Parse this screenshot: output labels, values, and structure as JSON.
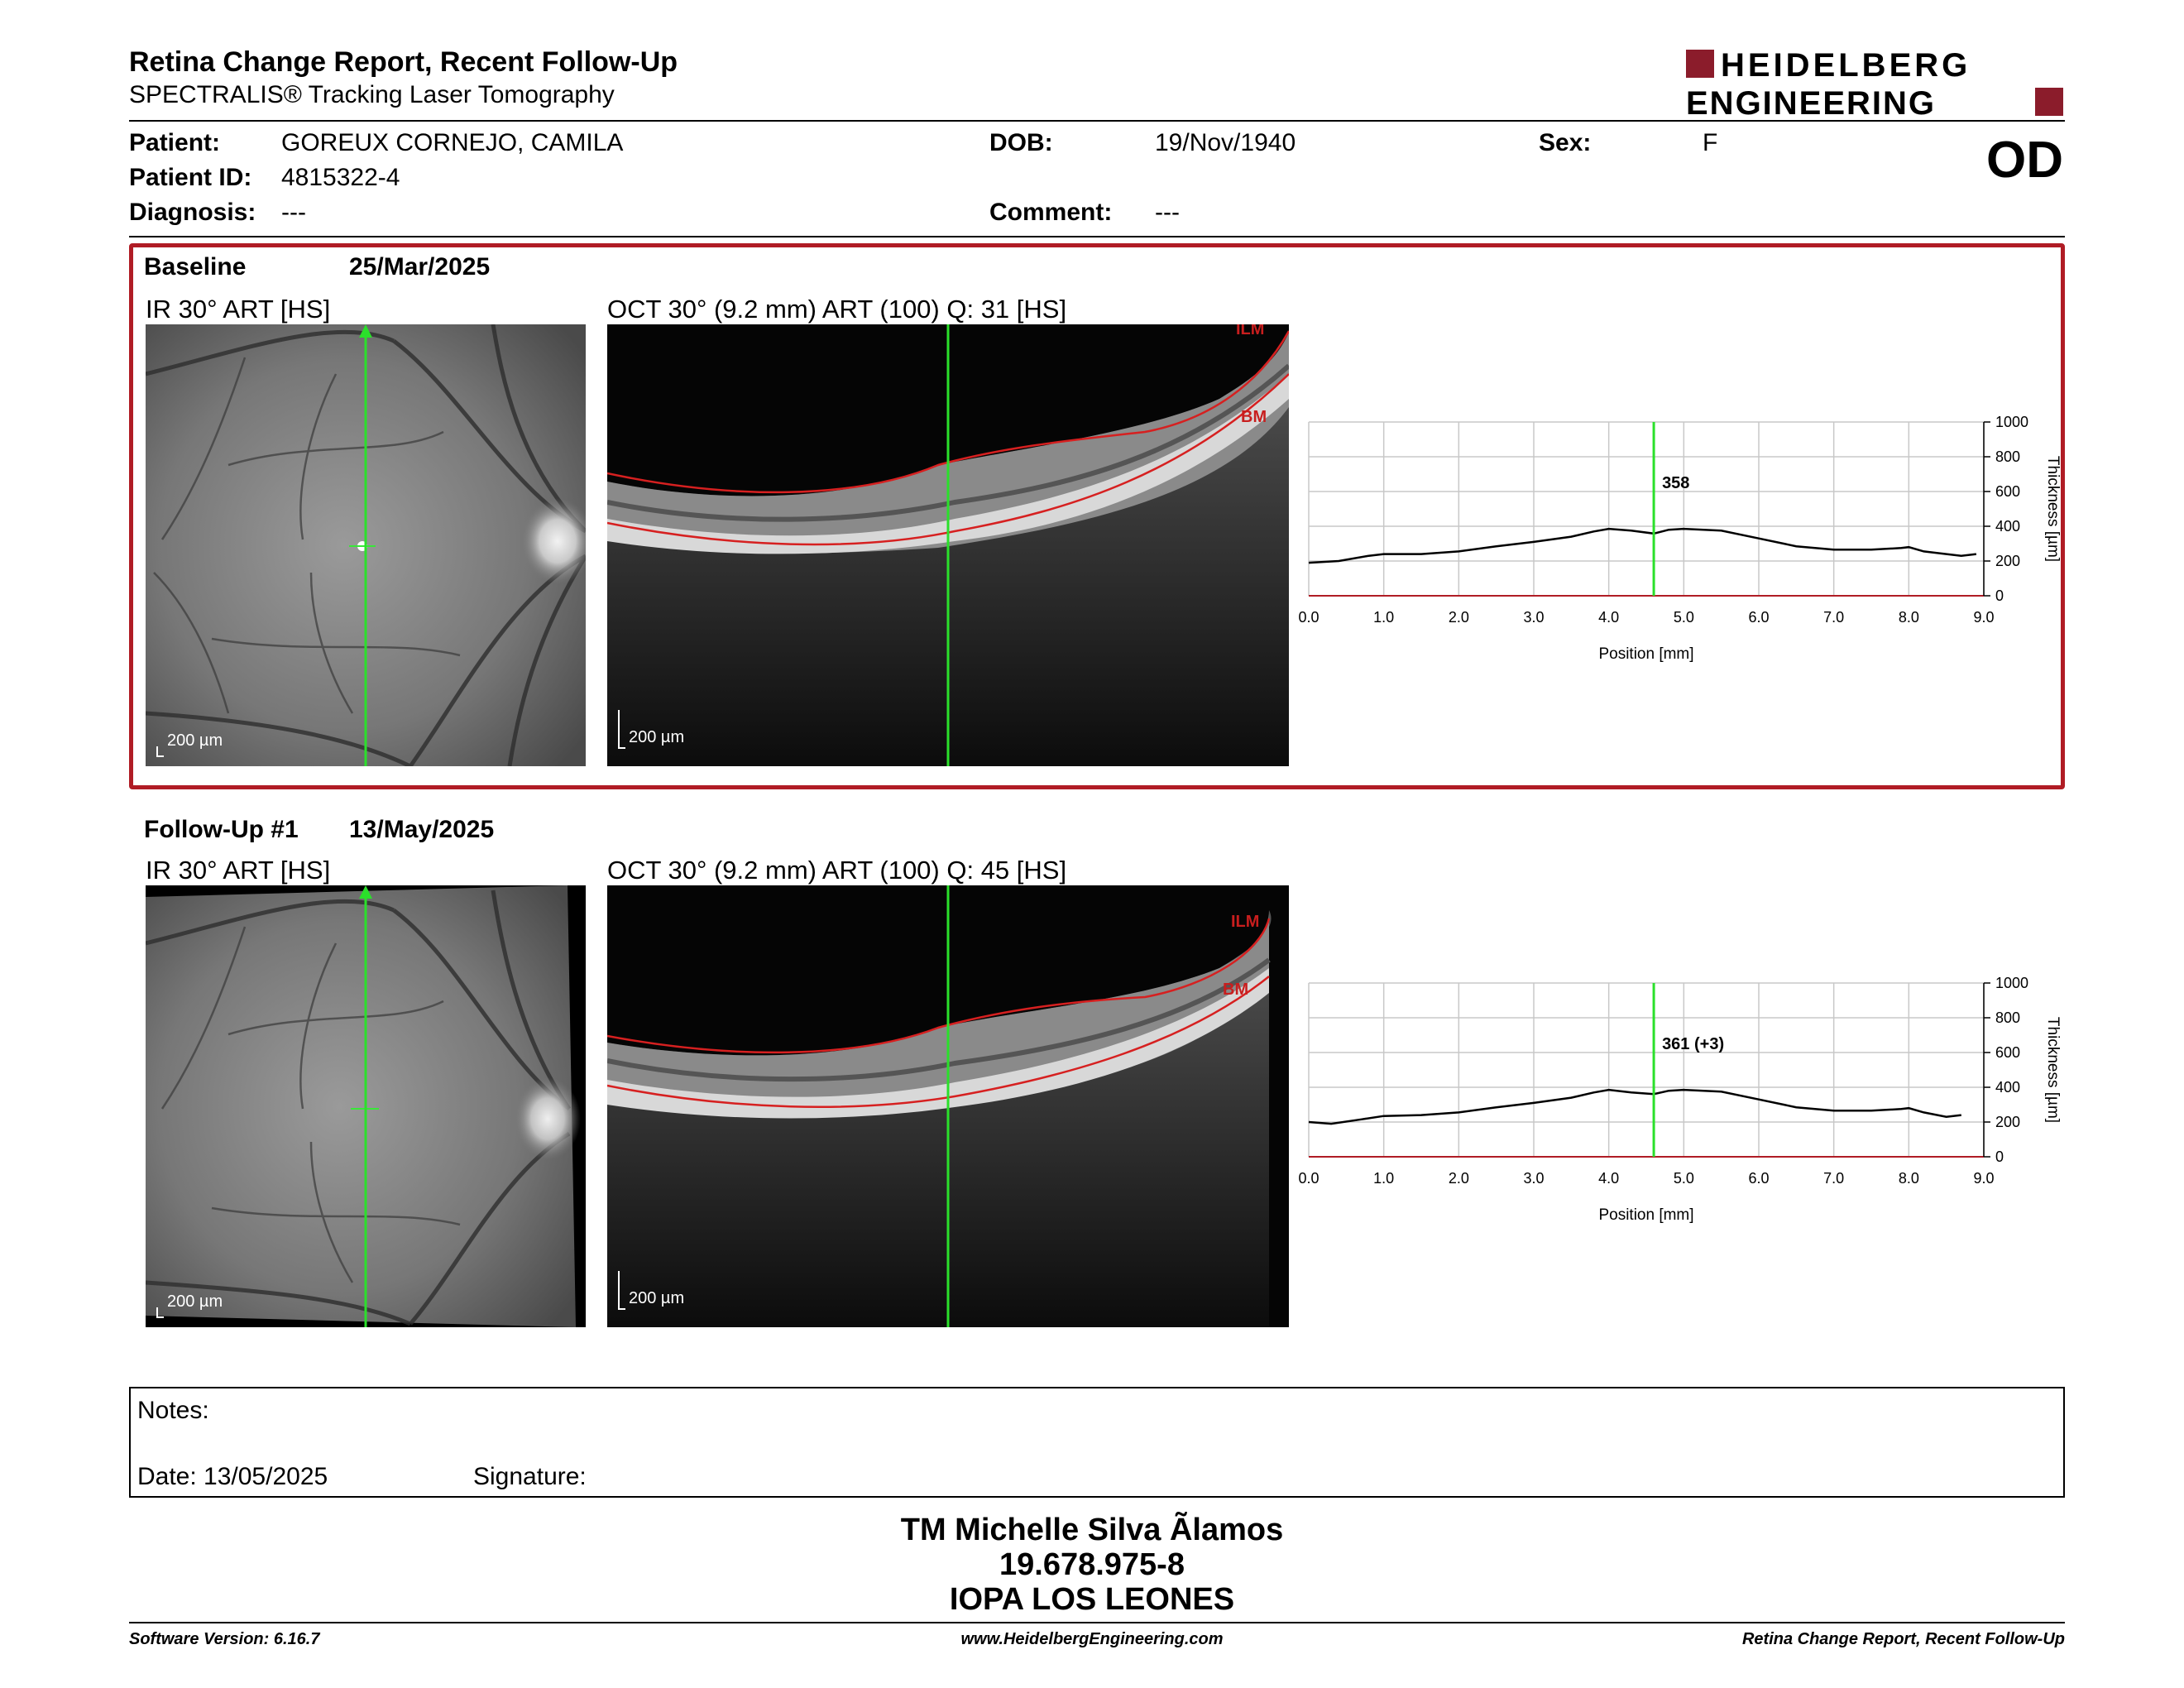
{
  "header": {
    "title": "Retina Change Report, Recent Follow-Up",
    "subtitle": "SPECTRALIS® Tracking Laser Tomography",
    "logo_line1": "HEIDELBERG",
    "logo_line2": "ENGINEERING",
    "eye": "OD"
  },
  "patient": {
    "name_label": "Patient:",
    "name": "GOREUX CORNEJO, CAMILA",
    "id_label": "Patient ID:",
    "id": "4815322-4",
    "diagnosis_label": "Diagnosis:",
    "diagnosis": "---",
    "dob_label": "DOB:",
    "dob": "19/Nov/1940",
    "comment_label": "Comment:",
    "comment": "---",
    "sex_label": "Sex:",
    "sex": "F"
  },
  "baseline": {
    "label": "Baseline",
    "date": "25/Mar/2025",
    "ir_title": "IR 30° ART [HS]",
    "oct_title": "OCT 30° (9.2 mm) ART (100) Q: 31 [HS]",
    "scale": "200 µm",
    "ilm_label": "ILM",
    "bm_label": "BM"
  },
  "followup": {
    "label": "Follow-Up #1",
    "date": "13/May/2025",
    "ir_title": "IR 30° ART [HS]",
    "oct_title": "OCT 30° (9.2 mm) ART (100) Q: 45 [HS]",
    "scale": "200 µm",
    "ilm_label": "ILM",
    "bm_label": "BM"
  },
  "chart_data": [
    {
      "type": "line",
      "xlabel": "Position [mm]",
      "ylabel": "Thickness [µm]",
      "xlim": [
        0,
        9
      ],
      "ylim": [
        0,
        1000
      ],
      "xticks": [
        "0.0",
        "1.0",
        "2.0",
        "3.0",
        "4.0",
        "5.0",
        "6.0",
        "7.0",
        "8.0",
        "9.0"
      ],
      "yticks": [
        "0",
        "200",
        "400",
        "600",
        "800",
        "1000"
      ],
      "marker_x": 4.6,
      "marker_label": "358",
      "series": [
        {
          "x": [
            0.0,
            0.4,
            0.8,
            1.0,
            1.5,
            2.0,
            2.5,
            3.0,
            3.5,
            3.8,
            4.0,
            4.3,
            4.6,
            4.8,
            5.0,
            5.5,
            6.0,
            6.5,
            7.0,
            7.5,
            7.9,
            8.0,
            8.2,
            8.5,
            8.7,
            8.9
          ],
          "values": [
            190,
            200,
            230,
            240,
            240,
            255,
            285,
            310,
            340,
            370,
            385,
            375,
            358,
            380,
            385,
            375,
            330,
            285,
            265,
            265,
            275,
            280,
            255,
            240,
            230,
            240
          ]
        }
      ]
    },
    {
      "type": "line",
      "xlabel": "Position [mm]",
      "ylabel": "Thickness [µm]",
      "xlim": [
        0,
        9
      ],
      "ylim": [
        0,
        1000
      ],
      "xticks": [
        "0.0",
        "1.0",
        "2.0",
        "3.0",
        "4.0",
        "5.0",
        "6.0",
        "7.0",
        "8.0",
        "9.0"
      ],
      "yticks": [
        "0",
        "200",
        "400",
        "600",
        "800",
        "1000"
      ],
      "marker_x": 4.6,
      "marker_label": "361 (+3)",
      "series": [
        {
          "x": [
            0.0,
            0.3,
            0.7,
            1.0,
            1.5,
            2.0,
            2.5,
            3.0,
            3.5,
            3.8,
            4.0,
            4.3,
            4.6,
            4.8,
            5.0,
            5.5,
            6.0,
            6.5,
            7.0,
            7.5,
            7.9,
            8.0,
            8.2,
            8.5,
            8.7
          ],
          "values": [
            200,
            190,
            215,
            235,
            240,
            255,
            285,
            310,
            340,
            370,
            385,
            370,
            361,
            380,
            385,
            375,
            330,
            285,
            265,
            265,
            275,
            280,
            255,
            230,
            240
          ]
        }
      ]
    }
  ],
  "notes": {
    "label": "Notes:",
    "date_label": "Date: 13/05/2025",
    "signature_label": "Signature:"
  },
  "signature_block": {
    "line1": "TM Michelle Silva Ãlamos",
    "line2": "19.678.975-8",
    "line3": "IOPA LOS LEONES"
  },
  "footer": {
    "version": "Software Version: 6.16.7",
    "website": "www.HeidelbergEngineering.com",
    "report_name": "Retina Change Report, Recent Follow-Up"
  }
}
